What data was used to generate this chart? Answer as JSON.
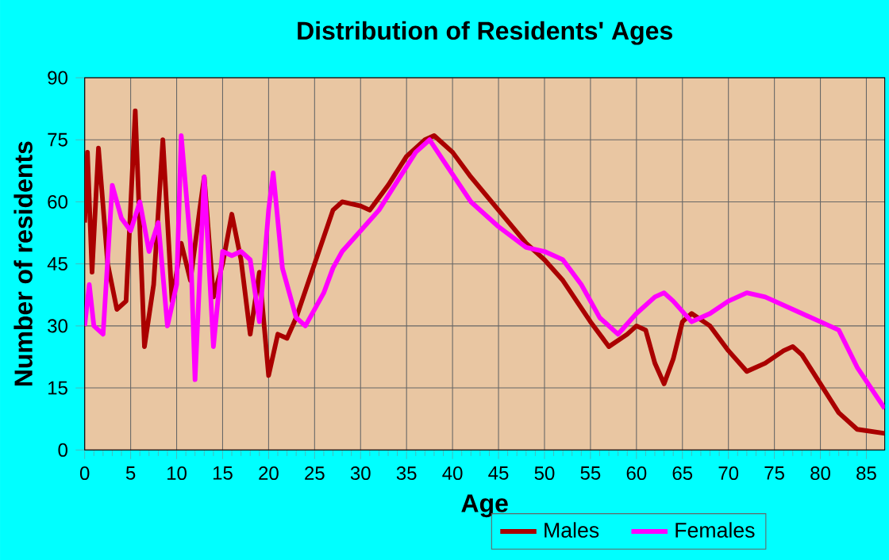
{
  "chart_data": {
    "type": "line",
    "title": "Distribution of Residents' Ages",
    "xlabel": "Age",
    "ylabel": "Number of residents",
    "xlim": [
      0,
      87
    ],
    "xticks": [
      0,
      5,
      10,
      15,
      20,
      25,
      30,
      35,
      40,
      45,
      50,
      55,
      60,
      65,
      70,
      75,
      80,
      85
    ],
    "ylim": [
      0,
      90
    ],
    "yticks": [
      0,
      15,
      30,
      45,
      60,
      75,
      90
    ],
    "grid": true,
    "legend": "bottom",
    "series": [
      {
        "name": "Males",
        "color": "#aa0000",
        "x": [
          0,
          0.3,
          0.8,
          1.5,
          2.5,
          3.5,
          4.5,
          5.5,
          6.5,
          7.5,
          8.5,
          9.5,
          10.5,
          11.5,
          12.5,
          13,
          14,
          15,
          16,
          17,
          18,
          19,
          20,
          21,
          22,
          23,
          25,
          27,
          28,
          30,
          31,
          33,
          35,
          37,
          38,
          40,
          42,
          45,
          48,
          50,
          52,
          55,
          57,
          59,
          60,
          61,
          62,
          63,
          64,
          65,
          66,
          68,
          70,
          72,
          74,
          76,
          77,
          78,
          80,
          82,
          84,
          87
        ],
        "values": [
          55,
          72,
          43,
          73,
          45,
          34,
          36,
          82,
          25,
          40,
          75,
          36,
          50,
          41,
          58,
          66,
          37,
          45,
          57,
          46,
          28,
          43,
          18,
          28,
          27,
          32,
          45,
          58,
          60,
          59,
          58,
          64,
          71,
          75,
          76,
          72,
          66,
          58,
          50,
          46,
          41,
          31,
          25,
          28,
          30,
          29,
          21,
          16,
          22,
          31,
          33,
          30,
          24,
          19,
          21,
          24,
          25,
          23,
          16,
          9,
          5,
          4
        ]
      },
      {
        "name": "Females",
        "color": "#ff00ff",
        "x": [
          0,
          0.5,
          1,
          2,
          3,
          4,
          5,
          6,
          7,
          8,
          9,
          10,
          10.5,
          11.5,
          12,
          13,
          14,
          15,
          16,
          17,
          18,
          19,
          20,
          20.5,
          21.5,
          23,
          24,
          26,
          27,
          28,
          30,
          32,
          34,
          36,
          37.5,
          39,
          42,
          45,
          48,
          50,
          52,
          54,
          56,
          58,
          60,
          62,
          63,
          64,
          66,
          68,
          70,
          72,
          74,
          76,
          78,
          80,
          82,
          84,
          87
        ],
        "values": [
          30,
          40,
          30,
          28,
          64,
          56,
          53,
          60,
          48,
          55,
          30,
          40,
          76,
          50,
          17,
          66,
          25,
          48,
          47,
          48,
          46,
          31,
          58,
          67,
          44,
          32,
          30,
          38,
          44,
          48,
          53,
          58,
          65,
          72,
          75,
          70,
          60,
          54,
          49,
          48,
          46,
          40,
          32,
          28,
          33,
          37,
          38,
          36,
          31,
          33,
          36,
          38,
          37,
          35,
          33,
          31,
          29,
          20,
          10
        ]
      }
    ]
  }
}
